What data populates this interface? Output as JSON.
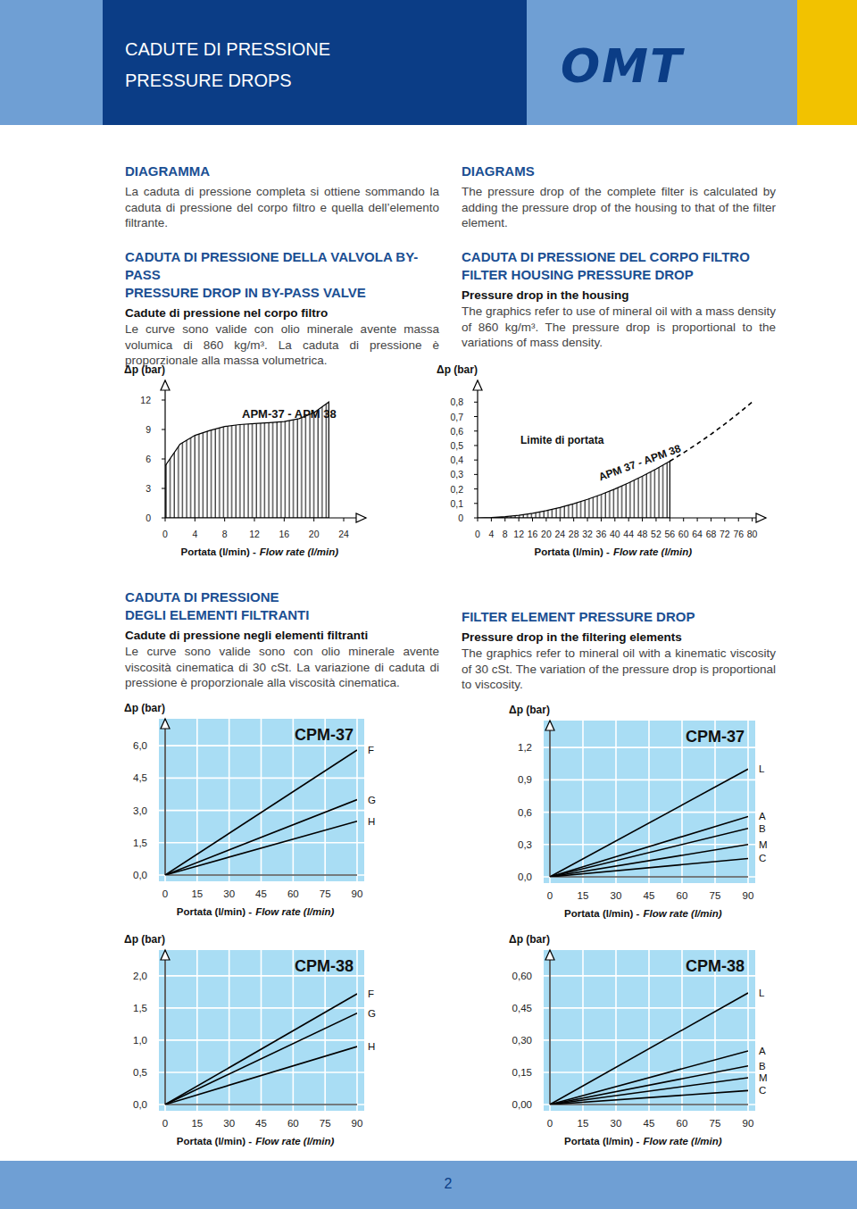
{
  "header": {
    "title_it": "CADUTE DI PRESSIONE",
    "title_en": "PRESSURE DROPS",
    "logo": "OMT"
  },
  "sections": [
    {
      "heading": [
        "DIAGRAMMA"
      ],
      "text": "La caduta di pressione completa si ottiene sommando la caduta di pressione del corpo filtro e quella dell’elemento filtrante."
    },
    {
      "heading": [
        "DIAGRAMS"
      ],
      "text": "The pressure drop of the complete filter is calculated by adding the pressure drop of the housing to that of the filter element."
    },
    {
      "heading": [
        "CADUTA DI PRESSIONE DELLA VALVOLA BY-PASS",
        "PRESSURE DROP IN BY-PASS VALVE"
      ],
      "subheading": "Cadute di pressione nel corpo filtro",
      "text": "Le curve sono valide con olio minerale avente massa volumica di 860 kg/m³. La caduta di pressione è proporzionale alla massa volumetrica."
    },
    {
      "heading": [
        "CADUTA DI PRESSIONE DEL CORPO FILTRO",
        "FILTER HOUSING PRESSURE DROP"
      ],
      "subheading": "Pressure drop in the housing",
      "text": "The graphics refer to use of mineral oil with a mass density of 860 kg/m³. The pressure drop is proportional to the variations of mass density."
    },
    {
      "heading": [
        "CADUTA DI PRESSIONE",
        "DEGLI ELEMENTI FILTRANTI"
      ],
      "subheading": "Cadute di pressione negli elementi filtranti",
      "text": "Le curve sono valide sono con olio minerale avente viscosità cinematica di 30 cSt. La variazione di caduta di pressione è proporzionale alla viscosità cinematica."
    },
    {
      "heading": [
        "FILTER ELEMENT PRESSURE DROP"
      ],
      "subheading": "Pressure drop in the filtering elements",
      "text": "The graphics refer to mineral oil with a kinematic viscosity of 30 cSt. The variation of the pressure drop is proportional to viscosity."
    }
  ],
  "footer": {
    "page": 2
  },
  "chart_data": [
    {
      "type": "area",
      "title": "APM-37 - APM 38",
      "ylabel": "Δp (bar)",
      "xlabel": "Portata (l/min) -",
      "xlabel_en": "Flow rate (l/min)",
      "x": [
        0,
        2,
        4,
        6,
        8,
        10,
        12,
        14,
        16,
        18,
        20,
        22
      ],
      "series": [
        {
          "values": [
            5.3,
            7.5,
            8.4,
            8.9,
            9.3,
            9.5,
            9.6,
            9.7,
            9.8,
            10.1,
            10.7,
            11.8
          ],
          "color": "#000000"
        }
      ],
      "xlim": [
        0,
        27
      ],
      "ylim": [
        0,
        14
      ],
      "xticks": [
        0,
        4,
        8,
        12,
        16,
        20,
        24
      ],
      "yticks": [
        0,
        3,
        6,
        9,
        12
      ],
      "grid": false
    },
    {
      "type": "area",
      "ylabel": "Δp (bar)",
      "xlabel": "Portata (l/min) -",
      "xlabel_en": "Flow rate (l/min)",
      "x": [
        0,
        4,
        8,
        12,
        16,
        20,
        24,
        28,
        32,
        36,
        40,
        44,
        48,
        52,
        56,
        60,
        64,
        68,
        72,
        76,
        80
      ],
      "series": [
        {
          "name": "APM 37 - APM 38",
          "type": "area",
          "color": "#000000",
          "values": [
            0,
            0.002,
            0.008,
            0.018,
            0.032,
            0.05,
            0.072,
            0.098,
            0.128,
            0.162,
            0.2,
            0.242,
            0.288,
            0.338,
            0.392,
            null,
            null,
            null,
            null,
            null,
            null
          ]
        },
        {
          "name": "Limite di portata",
          "type": "line",
          "line_style": "dashed",
          "color": "#000000",
          "values": [
            null,
            null,
            null,
            null,
            null,
            null,
            null,
            null,
            null,
            null,
            null,
            null,
            null,
            null,
            0.392,
            0.45,
            0.512,
            0.578,
            0.648,
            0.722,
            0.8
          ]
        }
      ],
      "xlim": [
        0,
        84
      ],
      "ylim": [
        0,
        0.95
      ],
      "xticks": [
        0,
        4,
        8,
        12,
        16,
        20,
        24,
        28,
        32,
        36,
        40,
        44,
        48,
        52,
        56,
        60,
        64,
        68,
        72,
        76,
        80
      ],
      "yticks": [
        0,
        {
          "value": 0.1,
          "label": "0,1"
        },
        {
          "value": 0.2,
          "label": "0,2"
        },
        {
          "value": 0.3,
          "label": "0,3"
        },
        {
          "value": 0.4,
          "label": "0,4"
        },
        {
          "value": 0.5,
          "label": "0,5"
        },
        {
          "value": 0.6,
          "label": "0,6"
        },
        {
          "value": 0.7,
          "label": "0,7"
        },
        {
          "value": 0.8,
          "label": "0,8"
        }
      ],
      "grid": false
    },
    {
      "type": "line",
      "title": "CPM-37",
      "ylabel": "Δp (bar)",
      "xlabel": "Portata (l/min) -",
      "xlabel_en": "Flow rate (l/min)",
      "x": [
        0,
        90
      ],
      "series": [
        {
          "name": "F",
          "color": "#000000",
          "values": [
            0,
            5.8
          ]
        },
        {
          "name": "G",
          "color": "#000000",
          "values": [
            0,
            3.5
          ]
        },
        {
          "name": "H",
          "color": "#000000",
          "values": [
            0,
            2.5
          ]
        }
      ],
      "xlim": [
        0,
        90
      ],
      "ylim": [
        0,
        7.25
      ],
      "xticks": [
        0,
        15,
        30,
        45,
        60,
        75,
        90
      ],
      "yticks": [
        {
          "value": 0,
          "label": "0,0"
        },
        {
          "value": 1.5,
          "label": "1,5"
        },
        {
          "value": 3,
          "label": "3,0"
        },
        {
          "value": 4.5,
          "label": "4,5"
        },
        {
          "value": 6,
          "label": "6,0"
        }
      ],
      "grid": true
    },
    {
      "type": "line",
      "title": "CPM-37",
      "ylabel": "Δp (bar)",
      "xlabel": "Portata (l/min) -",
      "xlabel_en": "Flow rate (l/min)",
      "x": [
        0,
        90
      ],
      "series": [
        {
          "name": "L",
          "color": "#000000",
          "values": [
            0,
            1.0
          ]
        },
        {
          "name": "A",
          "color": "#000000",
          "values": [
            0,
            0.56
          ]
        },
        {
          "name": "B",
          "color": "#000000",
          "values": [
            0,
            0.45
          ]
        },
        {
          "name": "M",
          "color": "#000000",
          "values": [
            0,
            0.3
          ]
        },
        {
          "name": "C",
          "color": "#000000",
          "values": [
            0,
            0.17
          ]
        }
      ],
      "xlim": [
        0,
        90
      ],
      "ylim": [
        0,
        1.45
      ],
      "xticks": [
        0,
        15,
        30,
        45,
        60,
        75,
        90
      ],
      "yticks": [
        {
          "value": 0,
          "label": "0,0"
        },
        {
          "value": 0.3,
          "label": "0,3"
        },
        {
          "value": 0.6,
          "label": "0,6"
        },
        {
          "value": 0.9,
          "label": "0,9"
        },
        {
          "value": 1.2,
          "label": "1,2"
        }
      ],
      "grid": true
    },
    {
      "type": "line",
      "title": "CPM-38",
      "ylabel": "Δp (bar)",
      "xlabel": "Portata (l/min) -",
      "xlabel_en": "Flow rate (l/min)",
      "x": [
        0,
        90
      ],
      "series": [
        {
          "name": "F",
          "color": "#000000",
          "values": [
            0,
            1.72
          ]
        },
        {
          "name": "G",
          "color": "#000000",
          "values": [
            0,
            1.42
          ]
        },
        {
          "name": "H",
          "color": "#000000",
          "values": [
            0,
            0.9
          ]
        }
      ],
      "xlim": [
        0,
        90
      ],
      "ylim": [
        0,
        2.4
      ],
      "xticks": [
        0,
        15,
        30,
        45,
        60,
        75,
        90
      ],
      "yticks": [
        {
          "value": 0,
          "label": "0,0"
        },
        {
          "value": 0.5,
          "label": "0,5"
        },
        {
          "value": 1,
          "label": "1,0"
        },
        {
          "value": 1.5,
          "label": "1,5"
        },
        {
          "value": 2,
          "label": "2,0"
        }
      ],
      "grid": true
    },
    {
      "type": "line",
      "title": "CPM-38",
      "ylabel": "Δp (bar)",
      "xlabel": "Portata (l/min) -",
      "xlabel_en": "Flow rate (l/min)",
      "x": [
        0,
        90
      ],
      "series": [
        {
          "name": "L",
          "color": "#000000",
          "values": [
            0,
            0.52
          ]
        },
        {
          "name": "A",
          "color": "#000000",
          "values": [
            0,
            0.25
          ]
        },
        {
          "name": "B",
          "color": "#000000",
          "values": [
            0,
            0.18
          ]
        },
        {
          "name": "M",
          "color": "#000000",
          "values": [
            0,
            0.125
          ]
        },
        {
          "name": "C",
          "color": "#000000",
          "values": [
            0,
            0.065
          ]
        }
      ],
      "xlim": [
        0,
        90
      ],
      "ylim": [
        0,
        0.72
      ],
      "xticks": [
        0,
        15,
        30,
        45,
        60,
        75,
        90
      ],
      "yticks": [
        {
          "value": 0,
          "label": "0,00"
        },
        {
          "value": 0.15,
          "label": "0,15"
        },
        {
          "value": 0.3,
          "label": "0,30"
        },
        {
          "value": 0.45,
          "label": "0,45"
        },
        {
          "value": 0.6,
          "label": "0,60"
        }
      ],
      "grid": true
    }
  ]
}
